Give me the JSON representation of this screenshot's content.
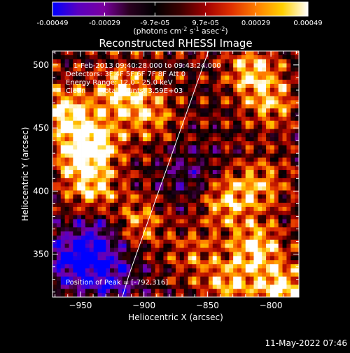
{
  "colorbar": {
    "tick_labels": [
      "-0.00049",
      "-0.00029",
      "-9.7e-05",
      "9.7e-05",
      "0.00029",
      "0.00049"
    ],
    "tick_values": [
      -0.00049,
      -0.00029,
      -9.7e-05,
      9.7e-05,
      0.00029,
      0.00049
    ],
    "range": [
      -0.00049,
      0.00049
    ],
    "units": {
      "prefix": "(photons cm",
      "exp1": "-2",
      "mid1": " s",
      "exp2": "-1",
      "mid2": " asec",
      "exp3": "-2",
      "suffix": ")"
    },
    "colors": [
      "#0000ff",
      "#5a00c0",
      "#7a00a0",
      "#2a0020",
      "#000000",
      "#3c0000",
      "#a00000",
      "#e03000",
      "#ff8000",
      "#ffd000",
      "#ffffff"
    ]
  },
  "chart_data": {
    "type": "heatmap",
    "title": "Reconstructed RHESSI Image",
    "xlabel": "Heliocentric X (arcsec)",
    "ylabel": "Heliocentric Y (arcsec)",
    "xlim": [
      -972,
      -778
    ],
    "ylim": [
      316,
      511
    ],
    "x_ticks": [
      -950,
      -900,
      -850,
      -800
    ],
    "x_tick_labels": [
      "−950",
      "−900",
      "−850",
      "−800"
    ],
    "y_ticks": [
      350,
      400,
      450,
      500
    ],
    "y_tick_labels": [
      "350",
      "400",
      "450",
      "500"
    ],
    "limb": {
      "x": [
        -917,
        -912,
        -906,
        -900,
        -894,
        -888,
        -882,
        -876,
        -870,
        -864,
        -858,
        -852,
        -846,
        -840
      ],
      "y": [
        316,
        333,
        350,
        367,
        384,
        401,
        418,
        435,
        452,
        469,
        486,
        503,
        520,
        537
      ]
    },
    "peak": [
      -792,
      316
    ],
    "annotations": {
      "time_range": "1-Feb-2013 09:40:28.000 to 09:43:24.000",
      "detectors": "Detectors: 3F 4F 5F 6F 7F 8F Att 0",
      "energy": "Energy Range: 12.0 - 25.0 keV",
      "method": "Clean",
      "counts": "Total counts: 3.59E+03",
      "peak_label": "Position of Peak = [-792,316]"
    },
    "emission_regions": [
      {
        "cx": -960,
        "cy": 462,
        "peak": 0.00049
      },
      {
        "cx": -950,
        "cy": 428,
        "peak": 0.00045
      },
      {
        "cx": -918,
        "cy": 478,
        "peak": 0.00042
      },
      {
        "cx": -935,
        "cy": 440,
        "peak": 0.00035
      },
      {
        "cx": -940,
        "cy": 400,
        "peak": 0.00038
      },
      {
        "cx": -895,
        "cy": 460,
        "peak": 0.0003
      },
      {
        "cx": -905,
        "cy": 375,
        "peak": 0.00032
      },
      {
        "cx": -815,
        "cy": 495,
        "peak": 0.0004
      },
      {
        "cx": -800,
        "cy": 470,
        "peak": 0.00033
      },
      {
        "cx": -835,
        "cy": 392,
        "peak": 0.00038
      },
      {
        "cx": -812,
        "cy": 355,
        "peak": 0.00045
      },
      {
        "cx": -792,
        "cy": 322,
        "peak": 0.00049
      },
      {
        "cx": -833,
        "cy": 325,
        "peak": 0.00036
      },
      {
        "cx": -808,
        "cy": 405,
        "peak": 0.0003
      },
      {
        "cx": -860,
        "cy": 350,
        "peak": 0.00022
      }
    ],
    "negative_regions": [
      {
        "cx": -955,
        "cy": 345,
        "peak": -0.00049
      },
      {
        "cx": -925,
        "cy": 330,
        "peak": -0.00035
      },
      {
        "cx": -935,
        "cy": 365,
        "peak": -0.0003
      },
      {
        "cx": -865,
        "cy": 412,
        "peak": -0.00022
      }
    ]
  },
  "timestamp": "11-May-2022 07:46"
}
